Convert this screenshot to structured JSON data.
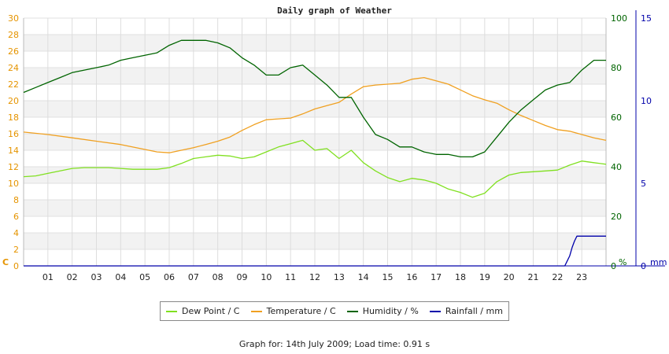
{
  "chart_data": {
    "type": "line",
    "title": "Daily graph of Weather",
    "x_ticks": [
      "01",
      "02",
      "03",
      "04",
      "05",
      "06",
      "07",
      "08",
      "09",
      "10",
      "11",
      "12",
      "13",
      "14",
      "15",
      "16",
      "17",
      "18",
      "19",
      "20",
      "21",
      "22",
      "23"
    ],
    "x_range_hours": [
      0,
      24
    ],
    "grid": true,
    "legend_position": "bottom",
    "axes": {
      "left": {
        "unit": "C",
        "range": [
          0,
          30
        ],
        "ticks": [
          0,
          2,
          4,
          6,
          8,
          10,
          12,
          14,
          16,
          18,
          20,
          22,
          24,
          26,
          28,
          30
        ],
        "color": "#e59400"
      },
      "right1": {
        "unit": "%",
        "range": [
          0,
          100
        ],
        "ticks": [
          0,
          20,
          40,
          60,
          80,
          100
        ],
        "color": "#006400"
      },
      "right2": {
        "unit": "mm",
        "range": [
          0,
          15
        ],
        "ticks": [
          0,
          5,
          10,
          15
        ],
        "color": "#0000aa"
      }
    },
    "series": [
      {
        "name": "Dew Point / C",
        "axis": "left",
        "color": "#80e020",
        "x": [
          0,
          0.5,
          1,
          1.5,
          2,
          2.5,
          3,
          3.5,
          4,
          4.5,
          5,
          5.5,
          6,
          6.5,
          7,
          7.5,
          8,
          8.5,
          9,
          9.5,
          10,
          10.5,
          11,
          11.5,
          12,
          12.5,
          13,
          13.5,
          14,
          14.5,
          15,
          15.5,
          16,
          16.5,
          17,
          17.5,
          18,
          18.5,
          19,
          19.5,
          20,
          20.5,
          21,
          21.5,
          22,
          22.5,
          23,
          23.5,
          24
        ],
        "y": [
          10.8,
          10.9,
          11.2,
          11.5,
          11.8,
          11.9,
          11.9,
          11.9,
          11.8,
          11.7,
          11.7,
          11.7,
          11.9,
          12.4,
          13.0,
          13.2,
          13.4,
          13.3,
          13.0,
          13.2,
          13.8,
          14.4,
          14.8,
          15.2,
          14.0,
          14.2,
          13.0,
          14.0,
          12.5,
          11.5,
          10.7,
          10.2,
          10.6,
          10.4,
          10.0,
          9.3,
          8.9,
          8.3,
          8.8,
          10.2,
          11.0,
          11.3,
          11.4,
          11.5,
          11.6,
          12.2,
          12.7,
          12.5,
          12.3
        ]
      },
      {
        "name": "Temperature / C",
        "axis": "left",
        "color": "#f0a020",
        "x": [
          0,
          1,
          2,
          3,
          4,
          5,
          5.5,
          6,
          6.5,
          7,
          7.5,
          8,
          8.5,
          9,
          9.5,
          10,
          10.5,
          11,
          11.5,
          12,
          12.5,
          13,
          13.5,
          14,
          14.5,
          15,
          15.5,
          16,
          16.5,
          17,
          17.5,
          18,
          18.5,
          19,
          19.5,
          20,
          20.5,
          21,
          21.5,
          22,
          22.5,
          23,
          23.5,
          24
        ],
        "y": [
          16.2,
          15.9,
          15.5,
          15.1,
          14.7,
          14.1,
          13.8,
          13.7,
          14.0,
          14.3,
          14.7,
          15.1,
          15.6,
          16.4,
          17.1,
          17.7,
          17.8,
          17.9,
          18.4,
          19.0,
          19.4,
          19.8,
          20.8,
          21.7,
          21.9,
          22.0,
          22.1,
          22.6,
          22.8,
          22.4,
          22.0,
          21.3,
          20.6,
          20.1,
          19.7,
          18.9,
          18.2,
          17.6,
          17.0,
          16.5,
          16.3,
          15.9,
          15.5,
          15.2
        ]
      },
      {
        "name": "Humidity / %",
        "axis": "right1",
        "color": "#006400",
        "x": [
          0,
          0.5,
          1,
          1.5,
          2,
          2.5,
          3,
          3.5,
          4,
          4.5,
          5,
          5.5,
          6,
          6.5,
          7,
          7.5,
          8,
          8.5,
          9,
          9.5,
          10,
          10.5,
          11,
          11.5,
          12,
          12.5,
          13,
          13.5,
          14,
          14.5,
          15,
          15.5,
          16,
          16.5,
          17,
          17.5,
          18,
          18.5,
          19,
          19.5,
          20,
          20.5,
          21,
          21.5,
          22,
          22.5,
          23,
          23.5,
          24
        ],
        "y": [
          70,
          72,
          74,
          76,
          78,
          79,
          80,
          81,
          83,
          84,
          85,
          86,
          89,
          91,
          91,
          91,
          90,
          88,
          84,
          81,
          77,
          77,
          80,
          81,
          77,
          73,
          68,
          68,
          60,
          53,
          51,
          48,
          48,
          46,
          45,
          45,
          44,
          44,
          46,
          52,
          58,
          63,
          67,
          71,
          73,
          74,
          79,
          83,
          83
        ]
      },
      {
        "name": "Rainfall / mm",
        "axis": "right2",
        "color": "#0000aa",
        "x": [
          0,
          22.3,
          22.4,
          22.5,
          22.6,
          22.7,
          22.8,
          24
        ],
        "y": [
          0,
          0,
          0.3,
          0.6,
          1.1,
          1.5,
          1.8,
          1.8
        ]
      }
    ]
  },
  "footer_text": "Graph for: 14th July 2009; Load time: 0.91 s"
}
